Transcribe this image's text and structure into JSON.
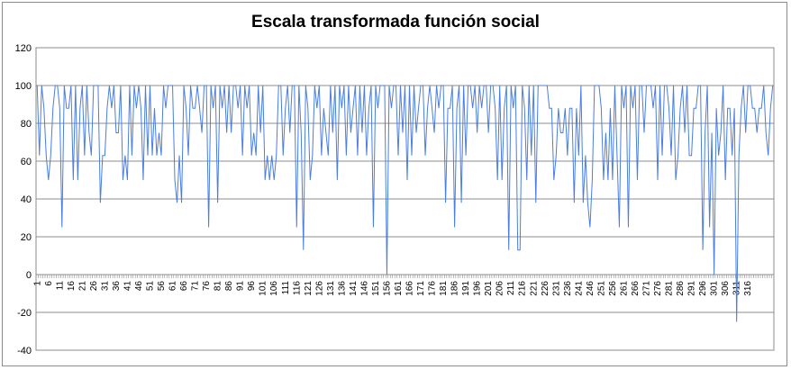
{
  "chart_data": {
    "type": "line",
    "title": "Escala transformada función social",
    "xlabel": "",
    "ylabel": "",
    "ylim": [
      -40,
      120
    ],
    "yticks": [
      -40,
      -20,
      0,
      20,
      40,
      60,
      80,
      100,
      120
    ],
    "x_tick_start": 1,
    "x_tick_step": 5,
    "x_count": 320,
    "grid": true,
    "legend": "none",
    "line_color": "#4a7ee0",
    "series": [
      {
        "values": [
          100,
          63,
          100,
          88,
          63,
          50,
          63,
          88,
          100,
          100,
          88,
          25,
          100,
          88,
          88,
          100,
          50,
          100,
          50,
          88,
          100,
          63,
          100,
          75,
          63,
          100,
          100,
          100,
          38,
          63,
          63,
          88,
          100,
          88,
          100,
          75,
          75,
          100,
          50,
          63,
          50,
          100,
          63,
          100,
          88,
          100,
          88,
          50,
          100,
          63,
          100,
          63,
          88,
          63,
          75,
          63,
          100,
          88,
          100,
          100,
          100,
          50,
          38,
          63,
          38,
          100,
          88,
          63,
          100,
          88,
          88,
          100,
          88,
          75,
          100,
          100,
          25,
          100,
          88,
          100,
          38,
          100,
          88,
          100,
          75,
          100,
          75,
          100,
          100,
          88,
          100,
          63,
          100,
          88,
          100,
          63,
          75,
          63,
          100,
          75,
          100,
          50,
          63,
          50,
          63,
          50,
          63,
          100,
          100,
          63,
          88,
          100,
          75,
          100,
          100,
          25,
          100,
          75,
          13,
          100,
          88,
          50,
          63,
          100,
          88,
          100,
          63,
          88,
          75,
          63,
          100,
          75,
          100,
          50,
          100,
          88,
          100,
          63,
          100,
          75,
          88,
          100,
          63,
          100,
          75,
          100,
          63,
          88,
          100,
          25,
          100,
          88,
          100,
          100,
          100,
          0,
          100,
          88,
          100,
          100,
          63,
          100,
          75,
          100,
          50,
          100,
          63,
          100,
          75,
          88,
          100,
          100,
          63,
          88,
          100,
          88,
          75,
          100,
          88,
          100,
          100,
          38,
          88,
          88,
          100,
          25,
          88,
          100,
          38,
          100,
          63,
          100,
          100,
          88,
          100,
          75,
          100,
          88,
          100,
          100,
          75,
          100,
          100,
          88,
          50,
          100,
          50,
          88,
          100,
          13,
          100,
          88,
          100,
          13,
          13,
          100,
          88,
          50,
          100,
          63,
          100,
          38,
          100,
          100,
          100,
          100,
          100,
          88,
          88,
          50,
          63,
          88,
          75,
          75,
          88,
          63,
          88,
          88,
          38,
          88,
          63,
          100,
          38,
          63,
          38,
          25,
          50,
          100,
          100,
          100,
          88,
          50,
          75,
          50,
          88,
          50,
          100,
          63,
          25,
          100,
          88,
          100,
          25,
          100,
          88,
          100,
          50,
          100,
          100,
          75,
          100,
          100,
          100,
          88,
          100,
          50,
          100,
          63,
          100,
          100,
          88,
          63,
          100,
          50,
          63,
          88,
          100,
          75,
          100,
          63,
          63,
          88,
          88,
          100,
          100,
          13,
          75,
          100,
          25,
          75,
          0,
          88,
          63,
          75,
          100,
          50,
          88,
          88,
          63,
          88,
          -25,
          63,
          88,
          100,
          75,
          100,
          100,
          88,
          88,
          75,
          88,
          88,
          100,
          75,
          63,
          88,
          100
        ]
      }
    ]
  }
}
